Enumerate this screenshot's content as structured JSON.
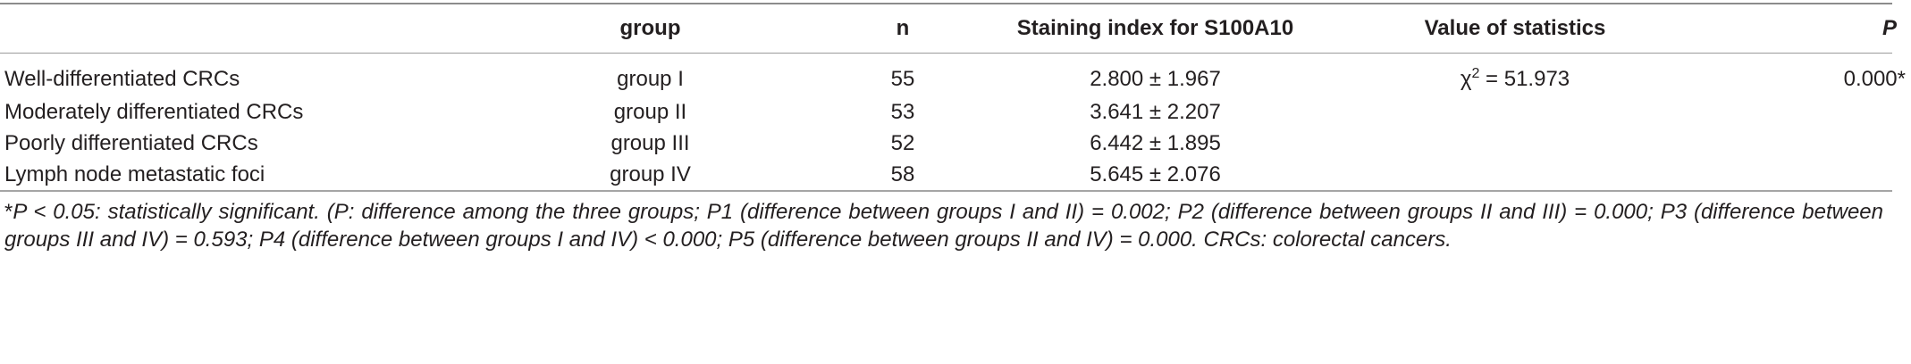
{
  "table": {
    "headers": [
      "",
      "group",
      "n",
      "Staining index for S100A10",
      "Value of statistics",
      "P"
    ],
    "rows": [
      [
        "Well-differentiated CRCs",
        "group I",
        "55",
        "2.800 ± 1.967",
        "χ2 = 51.973",
        "0.000*"
      ],
      [
        "Moderately differentiated CRCs",
        "group II",
        "53",
        "3.641 ± 2.207",
        "",
        ""
      ],
      [
        "Poorly differentiated CRCs",
        "group III",
        "52",
        "6.442 ± 1.895",
        "",
        ""
      ],
      [
        "Lymph node metastatic foci",
        "group IV",
        "58",
        "5.645 ± 2.076",
        "",
        ""
      ]
    ],
    "statistic": {
      "symbol": "χ",
      "superscript": "2",
      "value": " = 51.973"
    }
  },
  "footnote": {
    "marker": "*",
    "text": "P < 0.05: statistically significant. (P: difference among the three groups; P1 (difference between groups I and II) = 0.002; P2 (difference between groups II and III) = 0.000; P3 (difference between groups III and IV) = 0.593; P4 (difference between groups I and IV) < 0.000; P5 (difference between groups II and IV) = 0.000. CRCs: colorectal cancers."
  }
}
